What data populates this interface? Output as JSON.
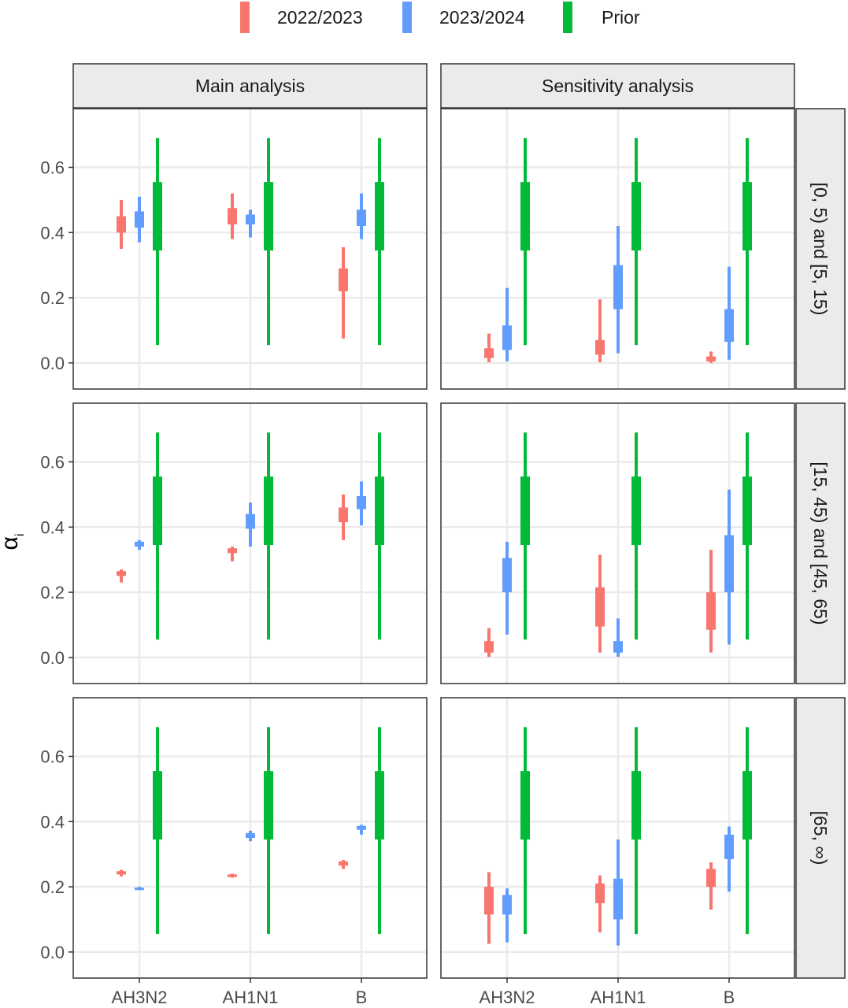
{
  "chart_data": {
    "type": "bar",
    "description_type": "faceted interval plot (inner 50% thick bar, outer 95% thin line)",
    "legend": {
      "placement": "top",
      "entries": [
        {
          "name": "2022/2023",
          "color": "#F8766D"
        },
        {
          "name": "2023/2024",
          "color": "#619CFF"
        },
        {
          "name": "Prior",
          "color": "#00BA38"
        }
      ]
    },
    "ylabel": "α",
    "ylabel_subscript": "i",
    "xlabel": "",
    "categories": [
      "AH3N2",
      "AH1N1",
      "B"
    ],
    "ylim": [
      -0.08,
      0.78
    ],
    "yticks": [
      0.0,
      0.2,
      0.4,
      0.6
    ],
    "ytick_labels": [
      "0.0",
      "0.2",
      "0.4",
      "0.6"
    ],
    "grid": true,
    "columns": [
      "Main analysis",
      "Sensitivity analysis"
    ],
    "rows": [
      "[0, 5) and [5, 15)",
      "[15, 45) and [45, 65)",
      "[65, ∞)"
    ],
    "panels": [
      {
        "column": "Main analysis",
        "row": "[0, 5) and [5, 15)",
        "series": [
          {
            "name": "2022/2023",
            "intervals": [
              [
                0.35,
                0.4,
                0.45,
                0.5
              ],
              [
                0.38,
                0.425,
                0.475,
                0.52
              ],
              [
                0.075,
                0.22,
                0.29,
                0.355
              ]
            ]
          },
          {
            "name": "2023/2024",
            "intervals": [
              [
                0.37,
                0.415,
                0.465,
                0.51
              ],
              [
                0.385,
                0.425,
                0.455,
                0.47
              ],
              [
                0.38,
                0.42,
                0.47,
                0.52
              ]
            ]
          },
          {
            "name": "Prior",
            "intervals": [
              [
                0.055,
                0.345,
                0.555,
                0.69
              ],
              [
                0.055,
                0.345,
                0.555,
                0.69
              ],
              [
                0.055,
                0.345,
                0.555,
                0.69
              ]
            ]
          }
        ]
      },
      {
        "column": "Sensitivity analysis",
        "row": "[0, 5) and [5, 15)",
        "series": [
          {
            "name": "2022/2023",
            "intervals": [
              [
                0.002,
                0.015,
                0.045,
                0.09
              ],
              [
                0.002,
                0.025,
                0.07,
                0.195
              ],
              [
                0.0,
                0.005,
                0.02,
                0.035
              ]
            ]
          },
          {
            "name": "2023/2024",
            "intervals": [
              [
                0.005,
                0.04,
                0.115,
                0.23
              ],
              [
                0.03,
                0.165,
                0.3,
                0.42
              ],
              [
                0.01,
                0.065,
                0.165,
                0.295
              ]
            ]
          },
          {
            "name": "Prior",
            "intervals": [
              [
                0.055,
                0.345,
                0.555,
                0.69
              ],
              [
                0.055,
                0.345,
                0.555,
                0.69
              ],
              [
                0.055,
                0.345,
                0.555,
                0.69
              ]
            ]
          }
        ]
      },
      {
        "column": "Main analysis",
        "row": "[15, 45) and [45, 65)",
        "series": [
          {
            "name": "2022/2023",
            "intervals": [
              [
                0.23,
                0.25,
                0.265,
                0.27
              ],
              [
                0.295,
                0.32,
                0.335,
                0.34
              ],
              [
                0.36,
                0.415,
                0.46,
                0.5
              ]
            ]
          },
          {
            "name": "2023/2024",
            "intervals": [
              [
                0.33,
                0.34,
                0.355,
                0.36
              ],
              [
                0.34,
                0.395,
                0.44,
                0.475
              ],
              [
                0.405,
                0.455,
                0.495,
                0.54
              ]
            ]
          },
          {
            "name": "Prior",
            "intervals": [
              [
                0.055,
                0.345,
                0.555,
                0.69
              ],
              [
                0.055,
                0.345,
                0.555,
                0.69
              ],
              [
                0.055,
                0.345,
                0.555,
                0.69
              ]
            ]
          }
        ]
      },
      {
        "column": "Sensitivity analysis",
        "row": "[15, 45) and [45, 65)",
        "series": [
          {
            "name": "2022/2023",
            "intervals": [
              [
                0.002,
                0.015,
                0.05,
                0.09
              ],
              [
                0.015,
                0.095,
                0.215,
                0.315
              ],
              [
                0.015,
                0.085,
                0.2,
                0.33
              ]
            ]
          },
          {
            "name": "2023/2024",
            "intervals": [
              [
                0.07,
                0.2,
                0.305,
                0.355
              ],
              [
                0.002,
                0.015,
                0.05,
                0.12
              ],
              [
                0.04,
                0.2,
                0.375,
                0.515
              ]
            ]
          },
          {
            "name": "Prior",
            "intervals": [
              [
                0.055,
                0.345,
                0.555,
                0.69
              ],
              [
                0.055,
                0.345,
                0.555,
                0.69
              ],
              [
                0.055,
                0.345,
                0.555,
                0.69
              ]
            ]
          }
        ]
      },
      {
        "column": "Main analysis",
        "row": "[65, ∞)",
        "series": [
          {
            "name": "2022/2023",
            "intervals": [
              [
                0.232,
                0.238,
                0.248,
                0.252
              ],
              [
                0.228,
                0.23,
                0.238,
                0.24
              ],
              [
                0.255,
                0.265,
                0.278,
                0.282
              ]
            ]
          },
          {
            "name": "2023/2024",
            "intervals": [
              [
                0.19,
                0.19,
                0.197,
                0.2
              ],
              [
                0.34,
                0.35,
                0.365,
                0.372
              ],
              [
                0.36,
                0.375,
                0.387,
                0.39
              ]
            ]
          },
          {
            "name": "Prior",
            "intervals": [
              [
                0.055,
                0.345,
                0.555,
                0.69
              ],
              [
                0.055,
                0.345,
                0.555,
                0.69
              ],
              [
                0.055,
                0.345,
                0.555,
                0.69
              ]
            ]
          }
        ]
      },
      {
        "column": "Sensitivity analysis",
        "row": "[65, ∞)",
        "series": [
          {
            "name": "2022/2023",
            "intervals": [
              [
                0.025,
                0.115,
                0.2,
                0.245
              ],
              [
                0.06,
                0.15,
                0.21,
                0.235
              ],
              [
                0.13,
                0.2,
                0.255,
                0.275
              ]
            ]
          },
          {
            "name": "2023/2024",
            "intervals": [
              [
                0.03,
                0.115,
                0.175,
                0.195
              ],
              [
                0.02,
                0.1,
                0.225,
                0.345
              ],
              [
                0.185,
                0.285,
                0.36,
                0.385
              ]
            ]
          },
          {
            "name": "Prior",
            "intervals": [
              [
                0.055,
                0.345,
                0.555,
                0.69
              ],
              [
                0.055,
                0.345,
                0.555,
                0.69
              ],
              [
                0.055,
                0.345,
                0.555,
                0.69
              ]
            ]
          }
        ]
      }
    ]
  }
}
